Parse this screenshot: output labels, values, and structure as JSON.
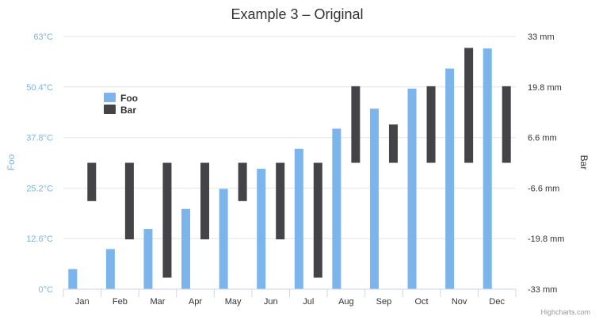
{
  "chart_data": {
    "type": "bar",
    "title": "Example 3 – Original",
    "categories": [
      "Jan",
      "Feb",
      "Mar",
      "Apr",
      "May",
      "Jun",
      "Jul",
      "Aug",
      "Sep",
      "Oct",
      "Nov",
      "Dec"
    ],
    "y_axis_left": {
      "title": "Foo",
      "tick_labels": [
        "0°C",
        "12.6°C",
        "25.2°C",
        "37.8°C",
        "50.4°C",
        "63°C"
      ],
      "range": [
        0,
        63
      ],
      "color": "#7cb5ec"
    },
    "y_axis_right": {
      "title": "Bar",
      "tick_labels": [
        "-33 mm",
        "-19.8 mm",
        "-6.6 mm",
        "6.6 mm",
        "19.8 mm",
        "33 mm"
      ],
      "range": [
        -33,
        33
      ],
      "color": "#333333"
    },
    "series": [
      {
        "name": "Foo",
        "axis": "left",
        "color": "#7cb5ec",
        "values": [
          5,
          10,
          15,
          20,
          25,
          30,
          35,
          40,
          45,
          50,
          55,
          60
        ]
      },
      {
        "name": "Bar",
        "axis": "right",
        "color": "#434348",
        "type": "floating-bar",
        "baseline": 0,
        "values": [
          -10,
          -20,
          -30,
          -20,
          -10,
          -20,
          -30,
          20,
          10,
          20,
          30,
          20
        ]
      }
    ],
    "grid": true,
    "legend_position": "top-left",
    "credits": "Highcharts.com"
  }
}
